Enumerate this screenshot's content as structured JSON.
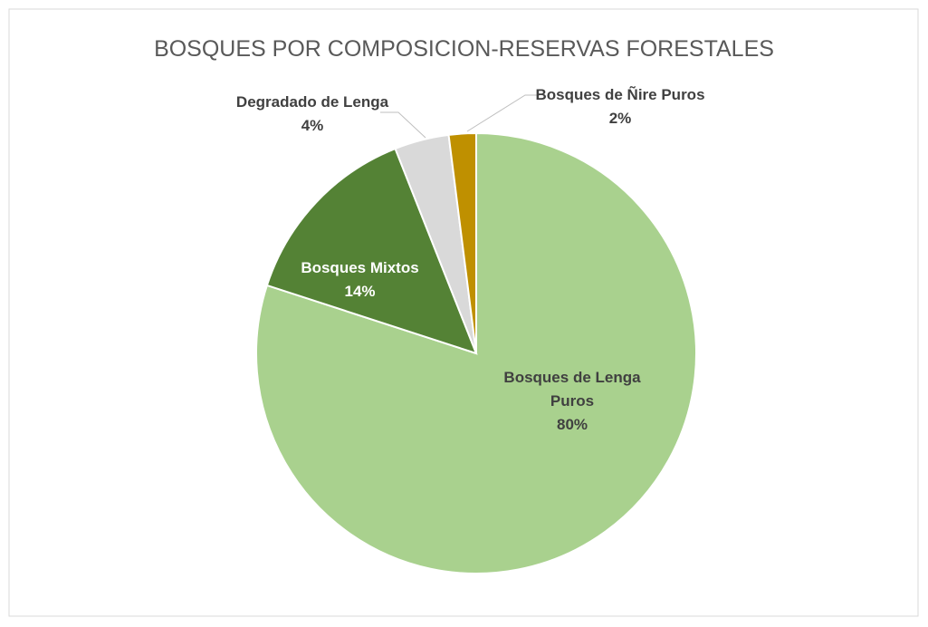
{
  "chart_data": {
    "type": "pie",
    "title": "BOSQUES POR COMPOSICION-RESERVAS FORESTALES",
    "categories": [
      "Bosques de Lenga Puros",
      "Bosques Mixtos",
      "Degradado de Lenga",
      "Bosques de Ñire Puros"
    ],
    "values": [
      80,
      14,
      4,
      2
    ],
    "value_labels": [
      "80%",
      "14%",
      "4%",
      "2%"
    ],
    "colors": [
      "#a9d18e",
      "#548235",
      "#d9d9d9",
      "#bf9000"
    ]
  }
}
